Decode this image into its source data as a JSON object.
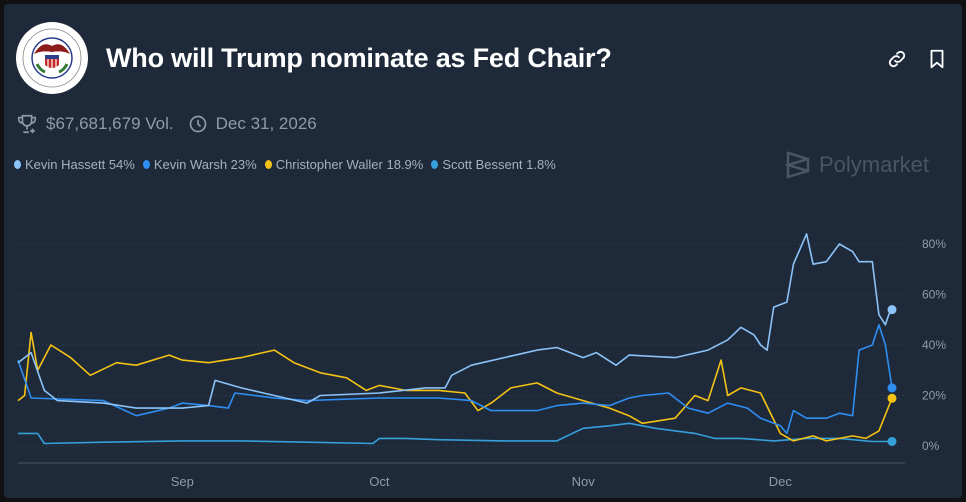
{
  "header": {
    "title": "Who will Trump nominate as Fed Chair?",
    "logo": "federal-reserve-seal",
    "seal_text": "BOARD OF GOVERNORS OF THE FEDERAL RESERVE SYSTEM",
    "link_icon": "link-icon",
    "bookmark_icon": "bookmark-icon"
  },
  "meta": {
    "volume": "$67,681,679 Vol.",
    "end_date": "Dec 31, 2026"
  },
  "watermark": "Polymarket",
  "legend": [
    {
      "label": "Kevin Hassett 54%",
      "color": "#8cc3f8"
    },
    {
      "label": "Kevin Warsh 23%",
      "color": "#2e8ef2"
    },
    {
      "label": "Christopher Waller 18.9%",
      "color": "#f4c214"
    },
    {
      "label": "Scott Bessent 1.8%",
      "color": "#35a0dc"
    }
  ],
  "chart_data": {
    "type": "line",
    "xlabel": "",
    "ylabel": "",
    "x_ticks": [
      "Sep",
      "Oct",
      "Nov",
      "Dec"
    ],
    "y_ticks": [
      "0%",
      "20%",
      "40%",
      "60%",
      "80%"
    ],
    "ylim": [
      0,
      85
    ],
    "xlim": [
      "08-07",
      "12-18"
    ],
    "grid": "horizontal dotted",
    "series": [
      {
        "name": "Kevin Hassett",
        "color": "#8cc3f8",
        "points": [
          [
            "08-07",
            33
          ],
          [
            "08-09",
            37
          ],
          [
            "08-11",
            22
          ],
          [
            "08-13",
            18
          ],
          [
            "08-20",
            17
          ],
          [
            "08-25",
            15
          ],
          [
            "09-01",
            15
          ],
          [
            "09-05",
            16
          ],
          [
            "09-06",
            26
          ],
          [
            "09-10",
            23
          ],
          [
            "09-15",
            20
          ],
          [
            "09-20",
            17
          ],
          [
            "09-22",
            20
          ],
          [
            "10-01",
            21
          ],
          [
            "10-08",
            23
          ],
          [
            "10-11",
            23
          ],
          [
            "10-12",
            28
          ],
          [
            "10-15",
            32
          ],
          [
            "10-20",
            35
          ],
          [
            "10-25",
            38
          ],
          [
            "10-28",
            39
          ],
          [
            "11-01",
            35
          ],
          [
            "11-03",
            37
          ],
          [
            "11-06",
            32
          ],
          [
            "11-08",
            36
          ],
          [
            "11-15",
            35
          ],
          [
            "11-20",
            38
          ],
          [
            "11-23",
            42
          ],
          [
            "11-25",
            47
          ],
          [
            "11-27",
            44
          ],
          [
            "11-28",
            40
          ],
          [
            "11-29",
            38
          ],
          [
            "11-30",
            55
          ],
          [
            "12-02",
            57
          ],
          [
            "12-03",
            72
          ],
          [
            "12-05",
            84
          ],
          [
            "12-06",
            72
          ],
          [
            "12-08",
            73
          ],
          [
            "12-10",
            80
          ],
          [
            "12-12",
            77
          ],
          [
            "12-13",
            73
          ],
          [
            "12-15",
            73
          ],
          [
            "12-16",
            52
          ],
          [
            "12-17",
            48
          ],
          [
            "12-17.5",
            52
          ],
          [
            "12-18",
            54
          ]
        ]
      },
      {
        "name": "Kevin Warsh",
        "color": "#2e8ef2",
        "points": [
          [
            "08-07",
            34
          ],
          [
            "08-09",
            19
          ],
          [
            "08-20",
            18
          ],
          [
            "08-25",
            12
          ],
          [
            "08-30",
            15
          ],
          [
            "09-01",
            17
          ],
          [
            "09-05",
            16
          ],
          [
            "09-08",
            15
          ],
          [
            "09-09",
            21
          ],
          [
            "09-15",
            19
          ],
          [
            "09-20",
            18
          ],
          [
            "10-01",
            19
          ],
          [
            "10-10",
            19
          ],
          [
            "10-15",
            18
          ],
          [
            "10-18",
            14
          ],
          [
            "10-25",
            14
          ],
          [
            "10-28",
            16
          ],
          [
            "11-01",
            17
          ],
          [
            "11-05",
            16
          ],
          [
            "11-08",
            19
          ],
          [
            "11-10",
            20
          ],
          [
            "11-14",
            21
          ],
          [
            "11-17",
            15
          ],
          [
            "11-20",
            13
          ],
          [
            "11-23",
            17
          ],
          [
            "11-26",
            15
          ],
          [
            "11-28",
            11
          ],
          [
            "12-01",
            8
          ],
          [
            "12-02",
            5
          ],
          [
            "12-03",
            14
          ],
          [
            "12-05",
            11
          ],
          [
            "12-08",
            11
          ],
          [
            "12-10",
            13
          ],
          [
            "12-12",
            12
          ],
          [
            "12-13",
            38
          ],
          [
            "12-15",
            40
          ],
          [
            "12-16",
            48
          ],
          [
            "12-17",
            40
          ],
          [
            "12-18",
            23
          ]
        ]
      },
      {
        "name": "Christopher Waller",
        "color": "#f4c214",
        "points": [
          [
            "08-07",
            18
          ],
          [
            "08-08",
            20
          ],
          [
            "08-09",
            45
          ],
          [
            "08-10",
            30
          ],
          [
            "08-12",
            40
          ],
          [
            "08-15",
            35
          ],
          [
            "08-18",
            28
          ],
          [
            "08-22",
            33
          ],
          [
            "08-25",
            32
          ],
          [
            "08-30",
            36
          ],
          [
            "09-01",
            34
          ],
          [
            "09-05",
            33
          ],
          [
            "09-10",
            35
          ],
          [
            "09-15",
            38
          ],
          [
            "09-18",
            33
          ],
          [
            "09-22",
            29
          ],
          [
            "09-26",
            27
          ],
          [
            "09-29",
            22
          ],
          [
            "10-01",
            24
          ],
          [
            "10-05",
            22
          ],
          [
            "10-10",
            22
          ],
          [
            "10-14",
            21
          ],
          [
            "10-16",
            14
          ],
          [
            "10-18",
            17
          ],
          [
            "10-21",
            23
          ],
          [
            "10-25",
            25
          ],
          [
            "10-28",
            21
          ],
          [
            "11-01",
            18
          ],
          [
            "11-05",
            15
          ],
          [
            "11-08",
            12
          ],
          [
            "11-10",
            9
          ],
          [
            "11-15",
            11
          ],
          [
            "11-18",
            20
          ],
          [
            "11-20",
            18
          ],
          [
            "11-22",
            34
          ],
          [
            "11-23",
            20
          ],
          [
            "11-25",
            23
          ],
          [
            "11-28",
            21
          ],
          [
            "12-01",
            5
          ],
          [
            "12-03",
            2
          ],
          [
            "12-06",
            4
          ],
          [
            "12-08",
            2
          ],
          [
            "12-12",
            4
          ],
          [
            "12-14",
            3
          ],
          [
            "12-16",
            6
          ],
          [
            "12-18",
            18.9
          ]
        ]
      },
      {
        "name": "Scott Bessent",
        "color": "#35a0dc",
        "points": [
          [
            "08-07",
            5
          ],
          [
            "08-10",
            5
          ],
          [
            "08-11",
            1
          ],
          [
            "08-20",
            1.5
          ],
          [
            "09-01",
            2
          ],
          [
            "09-10",
            2
          ],
          [
            "09-20",
            1.5
          ],
          [
            "09-30",
            1
          ],
          [
            "10-01",
            3
          ],
          [
            "10-05",
            3
          ],
          [
            "10-10",
            2.5
          ],
          [
            "10-20",
            2
          ],
          [
            "10-28",
            2
          ],
          [
            "11-01",
            7
          ],
          [
            "11-05",
            8
          ],
          [
            "11-08",
            9
          ],
          [
            "11-12",
            7
          ],
          [
            "11-18",
            5
          ],
          [
            "11-21",
            3
          ],
          [
            "11-25",
            3
          ],
          [
            "11-30",
            2
          ],
          [
            "12-05",
            3
          ],
          [
            "12-10",
            3
          ],
          [
            "12-15",
            1.8
          ],
          [
            "12-18",
            1.8
          ]
        ]
      }
    ]
  }
}
